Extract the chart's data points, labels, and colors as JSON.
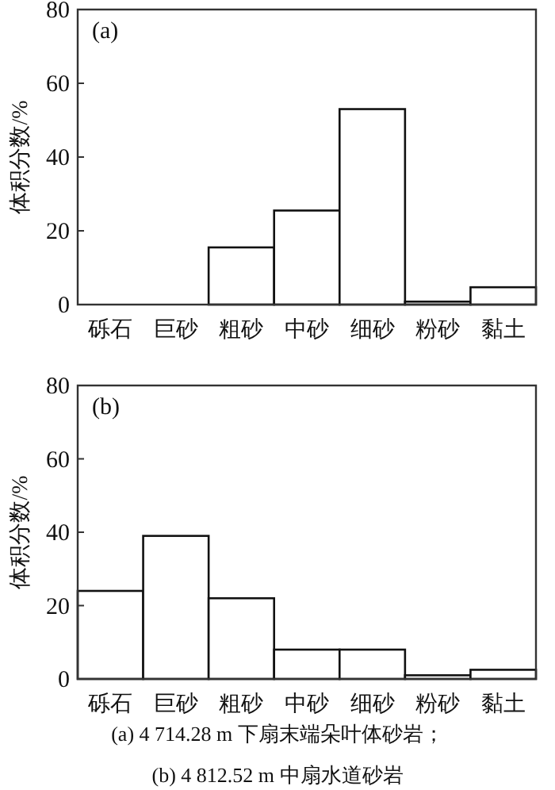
{
  "chart_data": [
    {
      "type": "bar",
      "title": "(a)",
      "ylabel": "体积分数/%",
      "categories": [
        "砾石",
        "巨砂",
        "粗砂",
        "中砂",
        "细砂",
        "粉砂",
        "黏土"
      ],
      "values": [
        0,
        0,
        15.5,
        25.5,
        53,
        0.8,
        4.7
      ],
      "color": "#ffffff",
      "ylim": [
        0,
        80
      ],
      "yticks": [
        0,
        20,
        40,
        60,
        80
      ]
    },
    {
      "type": "bar",
      "title": "(b)",
      "ylabel": "体积分数/%",
      "categories": [
        "砾石",
        "巨砂",
        "粗砂",
        "中砂",
        "细砂",
        "粉砂",
        "黏土"
      ],
      "values": [
        24,
        39,
        22,
        8,
        8,
        1,
        2.5
      ],
      "color": "#ffffff",
      "ylim": [
        0,
        80
      ],
      "yticks": [
        0,
        20,
        40,
        60,
        80
      ],
      "annotations": [
        "(a) 4 714.28 m 下扇末端朵叶体砂岩；",
        "(b) 4 812.52 m 中扇水道砂岩"
      ]
    }
  ]
}
